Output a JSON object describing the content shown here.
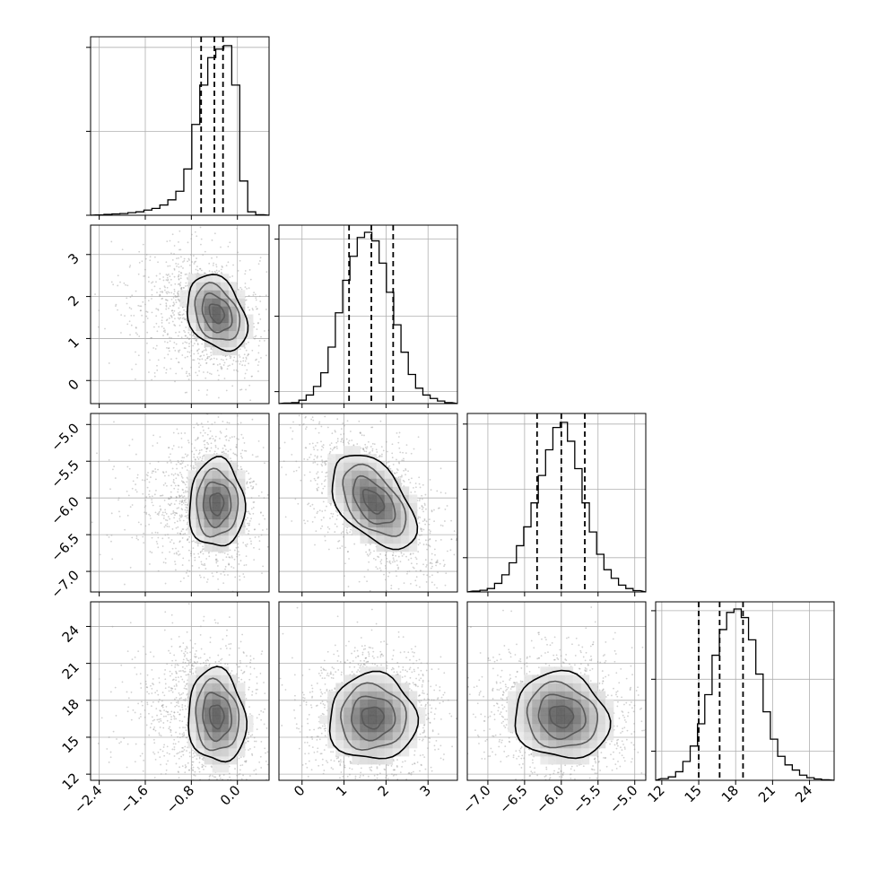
{
  "chart_data": {
    "type": "corner",
    "grid": true,
    "parameters": [
      {
        "range": [
          -2.55,
          0.55
        ],
        "ticks": [
          -2.4,
          -1.6,
          -0.8,
          0.0
        ],
        "tick_labels": [
          "−2.4",
          "−1.6",
          "−0.8",
          "0.0"
        ],
        "quantiles": [
          -0.63,
          -0.4,
          -0.25
        ],
        "hist": [
          0.002,
          0.005,
          0.008,
          0.01,
          0.015,
          0.02,
          0.03,
          0.04,
          0.06,
          0.09,
          0.14,
          0.27,
          0.53,
          0.76,
          0.92,
          0.97,
          0.99,
          0.76,
          0.2,
          0.02,
          0.003
        ],
        "hist_yticks": [
          0.98,
          0.49,
          0.0
        ]
      },
      {
        "range": [
          -0.55,
          3.7
        ],
        "ticks": [
          0,
          1,
          2,
          3
        ],
        "tick_labels": [
          "0",
          "1",
          "2",
          "3"
        ],
        "quantiles": [
          1.12,
          1.65,
          2.17
        ],
        "hist": [
          0.003,
          0.006,
          0.02,
          0.05,
          0.1,
          0.18,
          0.33,
          0.53,
          0.72,
          0.86,
          0.97,
          1.0,
          0.95,
          0.82,
          0.65,
          0.46,
          0.3,
          0.17,
          0.09,
          0.05,
          0.03,
          0.015,
          0.006
        ],
        "hist_yticks": [
          0.96,
          0.51,
          0.07
        ]
      },
      {
        "range": [
          -7.28,
          -4.85
        ],
        "ticks": [
          -7.0,
          -6.5,
          -6.0,
          -5.5,
          -5.0
        ],
        "tick_labels": [
          "−7.0",
          "−6.5",
          "−6.0",
          "−5.5",
          "−5.0"
        ],
        "quantiles": [
          -6.33,
          -6.0,
          -5.68
        ],
        "hist": [
          0.005,
          0.01,
          0.02,
          0.05,
          0.1,
          0.17,
          0.27,
          0.38,
          0.52,
          0.68,
          0.83,
          0.96,
          0.99,
          0.88,
          0.72,
          0.52,
          0.35,
          0.22,
          0.13,
          0.08,
          0.04,
          0.02,
          0.008
        ],
        "hist_yticks": [
          0.98,
          0.6,
          0.2
        ]
      },
      {
        "range": [
          11.5,
          26.0
        ],
        "ticks": [
          12,
          15,
          18,
          21,
          24
        ],
        "tick_labels": [
          "12",
          "15",
          "18",
          "21",
          "24"
        ],
        "quantiles": [
          15.0,
          16.7,
          18.6
        ],
        "hist": [
          0.01,
          0.02,
          0.05,
          0.11,
          0.2,
          0.33,
          0.5,
          0.73,
          0.88,
          0.98,
          1.0,
          0.95,
          0.82,
          0.62,
          0.4,
          0.24,
          0.14,
          0.09,
          0.06,
          0.03,
          0.015,
          0.008,
          0.003
        ],
        "hist_yticks": [
          0.99,
          0.59,
          0.17
        ]
      }
    ],
    "pairs": [
      {
        "x": 0,
        "y": 1,
        "center": [
          -0.36,
          1.6
        ],
        "sigma": [
          0.26,
          0.45
        ],
        "corr": -0.3,
        "contour_levels": 4
      },
      {
        "x": 0,
        "y": 2,
        "center": [
          -0.36,
          -6.08
        ],
        "sigma": [
          0.24,
          0.3
        ],
        "corr": 0.0,
        "contour_levels": 4
      },
      {
        "x": 1,
        "y": 2,
        "center": [
          1.7,
          -6.05
        ],
        "sigma": [
          0.5,
          0.32
        ],
        "corr": -0.5,
        "contour_levels": 4
      },
      {
        "x": 0,
        "y": 3,
        "center": [
          -0.36,
          16.7
        ],
        "sigma": [
          0.25,
          1.9
        ],
        "corr": -0.1,
        "contour_levels": 4
      },
      {
        "x": 1,
        "y": 3,
        "center": [
          1.68,
          16.6
        ],
        "sigma": [
          0.52,
          1.75
        ],
        "corr": 0.0,
        "contour_levels": 4
      },
      {
        "x": 2,
        "y": 3,
        "center": [
          -6.0,
          16.7
        ],
        "sigma": [
          0.32,
          1.75
        ],
        "corr": -0.1,
        "contour_levels": 4
      }
    ]
  }
}
